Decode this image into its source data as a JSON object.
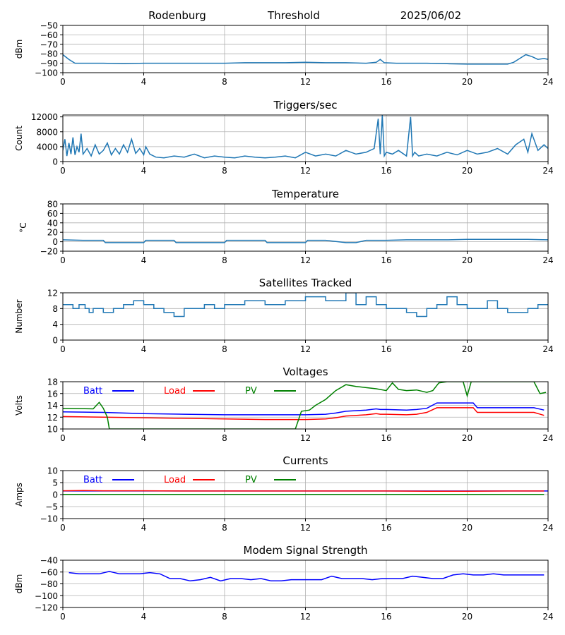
{
  "header": {
    "station": "Rodenburg",
    "mode": "Threshold",
    "date": "2025/06/02"
  },
  "chart_data": [
    {
      "type": "line",
      "title": "",
      "ylabel": "dBm",
      "ylim": [
        -100,
        -50
      ],
      "yticks": [
        -100,
        -90,
        -80,
        -70,
        -60,
        -50
      ],
      "xlim": [
        0,
        24
      ],
      "xticks": [
        0,
        4,
        8,
        12,
        16,
        20,
        24
      ],
      "grid": true,
      "series": [
        {
          "color": "#1f77b4",
          "x": [
            0,
            0.3,
            0.6,
            1,
            2,
            3,
            4,
            5,
            6,
            7,
            8,
            9,
            10,
            11,
            12,
            13,
            14,
            15,
            15.5,
            15.7,
            15.9,
            16.5,
            17,
            18,
            19,
            20,
            21,
            22,
            22.3,
            22.6,
            22.9,
            23.2,
            23.5,
            23.8,
            24
          ],
          "y": [
            -81,
            -86,
            -90,
            -90,
            -90,
            -90.5,
            -90,
            -90,
            -90,
            -90,
            -90,
            -89.5,
            -89.5,
            -89.5,
            -89,
            -89.5,
            -89.5,
            -90,
            -89,
            -86,
            -89.5,
            -90,
            -90,
            -90,
            -90.5,
            -91,
            -91,
            -91,
            -89,
            -85,
            -81,
            -83,
            -86,
            -85,
            -86
          ]
        }
      ]
    },
    {
      "type": "line",
      "title": "Triggers/sec",
      "ylabel": "Count",
      "ylim": [
        0,
        12500
      ],
      "yticks": [
        0,
        4000,
        8000,
        12000
      ],
      "xlim": [
        0,
        24
      ],
      "xticks": [
        0,
        4,
        8,
        12,
        16,
        20,
        24
      ],
      "grid": true,
      "series": [
        {
          "color": "#1f77b4",
          "x": [
            0,
            0.1,
            0.2,
            0.3,
            0.4,
            0.5,
            0.6,
            0.7,
            0.8,
            0.9,
            1.0,
            1.2,
            1.4,
            1.6,
            1.8,
            2.0,
            2.2,
            2.4,
            2.6,
            2.8,
            3.0,
            3.2,
            3.4,
            3.6,
            3.8,
            4.0,
            4.1,
            4.3,
            4.6,
            5.0,
            5.5,
            6.0,
            6.5,
            7.0,
            7.5,
            8.0,
            8.5,
            9.0,
            9.5,
            10.0,
            10.5,
            11.0,
            11.5,
            12.0,
            12.5,
            13.0,
            13.5,
            14.0,
            14.5,
            15.0,
            15.4,
            15.6,
            15.7,
            15.8,
            15.9,
            16.0,
            16.3,
            16.6,
            17.0,
            17.2,
            17.3,
            17.4,
            17.6,
            18.0,
            18.5,
            19.0,
            19.5,
            20.0,
            20.5,
            21.0,
            21.5,
            22.0,
            22.4,
            22.8,
            23.0,
            23.2,
            23.5,
            23.8,
            24.0
          ],
          "y": [
            3000,
            6000,
            1500,
            5000,
            2000,
            6500,
            1800,
            4000,
            2500,
            7500,
            2000,
            3500,
            1500,
            4500,
            2000,
            3000,
            5000,
            1800,
            3500,
            2000,
            4500,
            2500,
            6000,
            2200,
            3500,
            1800,
            4000,
            2000,
            1200,
            1000,
            1500,
            1200,
            2000,
            1000,
            1500,
            1200,
            1000,
            1500,
            1200,
            1000,
            1200,
            1500,
            1000,
            2500,
            1500,
            2000,
            1500,
            3000,
            2000,
            2500,
            3500,
            11500,
            2000,
            12500,
            1500,
            2500,
            2000,
            3000,
            1500,
            12000,
            1500,
            2500,
            1500,
            2000,
            1500,
            2500,
            1800,
            3000,
            2000,
            2500,
            3500,
            2000,
            4500,
            6000,
            2500,
            7500,
            3000,
            4500,
            3500
          ]
        }
      ]
    },
    {
      "type": "line",
      "title": "Temperature",
      "ylabel": "°C",
      "ylim": [
        -20,
        80
      ],
      "yticks": [
        -20,
        0,
        20,
        40,
        60,
        80
      ],
      "xlim": [
        0,
        24
      ],
      "xticks": [
        0,
        4,
        8,
        12,
        16,
        20,
        24
      ],
      "grid": true,
      "series": [
        {
          "color": "#1f77b4",
          "x": [
            0,
            1,
            2,
            2.1,
            3,
            4,
            4.1,
            5,
            5.5,
            5.6,
            6,
            7,
            8,
            8.1,
            9,
            10,
            10.1,
            11,
            12,
            12.1,
            13,
            14,
            14.5,
            15,
            15.5,
            16,
            17,
            18,
            19,
            20,
            21,
            22,
            23,
            24
          ],
          "y": [
            4,
            3,
            3,
            -2,
            -2,
            -2,
            3,
            3,
            3,
            -2,
            -2,
            -2,
            -2,
            3,
            3,
            3,
            -2,
            -2,
            -2,
            3,
            3,
            -2,
            -2,
            3,
            3,
            3,
            4,
            4,
            4,
            5,
            5,
            5,
            5,
            4
          ]
        }
      ]
    },
    {
      "type": "line",
      "title": "Satellites Tracked",
      "ylabel": "Number",
      "ylim": [
        0,
        12
      ],
      "yticks": [
        0,
        4,
        8,
        12
      ],
      "xlim": [
        0,
        24
      ],
      "xticks": [
        0,
        4,
        8,
        12,
        16,
        20,
        24
      ],
      "grid": true,
      "series": [
        {
          "color": "#1f77b4",
          "x": [
            0,
            0.5,
            0.5,
            0.8,
            0.8,
            1.1,
            1.1,
            1.3,
            1.3,
            1.5,
            1.5,
            2.0,
            2.0,
            2.5,
            2.5,
            3.0,
            3.0,
            3.5,
            3.5,
            4.0,
            4.0,
            4.5,
            4.5,
            5.0,
            5.0,
            5.5,
            5.5,
            6.0,
            6.0,
            7.0,
            7.0,
            7.5,
            7.5,
            8.0,
            8.0,
            9.0,
            9.0,
            10.0,
            10.0,
            11.0,
            11.0,
            12.0,
            12.0,
            13.0,
            13.0,
            14.0,
            14.0,
            14.5,
            14.5,
            15.0,
            15.0,
            15.5,
            15.5,
            16.0,
            16.0,
            17.0,
            17.0,
            17.5,
            17.5,
            18.0,
            18.0,
            18.5,
            18.5,
            19.0,
            19.0,
            19.5,
            19.5,
            20.0,
            20.0,
            21.0,
            21.0,
            21.5,
            21.5,
            22.0,
            22.0,
            23.0,
            23.0,
            23.5,
            23.5,
            24.0
          ],
          "y": [
            9,
            9,
            8,
            8,
            9,
            9,
            8,
            8,
            7,
            7,
            8,
            8,
            7,
            7,
            8,
            8,
            9,
            9,
            10,
            10,
            9,
            9,
            8,
            8,
            7,
            7,
            6,
            6,
            8,
            8,
            9,
            9,
            8,
            8,
            9,
            9,
            10,
            10,
            9,
            9,
            10,
            10,
            11,
            11,
            10,
            10,
            12,
            12,
            9,
            9,
            11,
            11,
            9,
            9,
            8,
            8,
            7,
            7,
            6,
            6,
            8,
            8,
            9,
            9,
            11,
            11,
            9,
            9,
            8,
            8,
            10,
            10,
            8,
            8,
            7,
            7,
            8,
            8,
            9,
            9
          ]
        }
      ]
    },
    {
      "type": "line",
      "title": "Voltages",
      "ylabel": "Volts",
      "ylim": [
        10,
        18
      ],
      "yticks": [
        10,
        12,
        14,
        16,
        18
      ],
      "xlim": [
        0,
        24
      ],
      "xticks": [
        0,
        4,
        8,
        12,
        16,
        20,
        24
      ],
      "grid": true,
      "legend": "upper-left-inline",
      "series": [
        {
          "name": "Batt",
          "color": "#0000ff",
          "x": [
            0,
            2,
            4,
            6,
            8,
            10,
            12,
            13,
            13.5,
            14,
            15,
            15.5,
            15.7,
            16,
            17,
            17.5,
            18,
            18.5,
            19,
            20,
            20.3,
            20.5,
            21,
            22,
            23,
            23.3,
            23.8
          ],
          "y": [
            12.9,
            12.8,
            12.6,
            12.5,
            12.4,
            12.4,
            12.4,
            12.5,
            12.7,
            13.0,
            13.2,
            13.4,
            13.3,
            13.3,
            13.2,
            13.3,
            13.5,
            14.4,
            14.4,
            14.4,
            14.4,
            13.6,
            13.6,
            13.6,
            13.6,
            13.6,
            13.2
          ]
        },
        {
          "name": "Load",
          "color": "#ff0000",
          "x": [
            0,
            2,
            4,
            6,
            8,
            10,
            12,
            13,
            13.5,
            14,
            15,
            15.5,
            15.7,
            16,
            17,
            17.5,
            18,
            18.5,
            19,
            20,
            20.3,
            20.5,
            21,
            22,
            23,
            23.3,
            23.8
          ],
          "y": [
            12.1,
            12.0,
            11.9,
            11.8,
            11.7,
            11.6,
            11.6,
            11.7,
            11.9,
            12.2,
            12.4,
            12.6,
            12.5,
            12.5,
            12.4,
            12.5,
            12.8,
            13.6,
            13.6,
            13.6,
            13.6,
            12.8,
            12.8,
            12.8,
            12.8,
            12.8,
            12.3
          ]
        },
        {
          "name": "PV",
          "color": "#008000",
          "x": [
            0,
            1.5,
            1.8,
            2.0,
            2.2,
            2.3,
            11.5,
            11.8,
            12.2,
            12.5,
            13.0,
            13.5,
            14.0,
            14.5,
            15.0,
            15.5,
            16.0,
            16.3,
            16.6,
            17.0,
            17.5,
            18.0,
            18.3,
            18.6,
            19.0,
            19.4,
            19.8,
            20.0,
            20.2,
            23.3,
            23.6,
            23.9
          ],
          "y": [
            13.5,
            13.4,
            14.5,
            13.5,
            12.0,
            10.0,
            10.0,
            13.0,
            13.2,
            14.0,
            15.0,
            16.5,
            17.5,
            17.2,
            17.0,
            16.8,
            16.5,
            17.8,
            16.7,
            16.5,
            16.6,
            16.2,
            16.5,
            17.8,
            18.0,
            18.0,
            18.0,
            15.6,
            18.0,
            18.0,
            16.0,
            16.2
          ]
        }
      ]
    },
    {
      "type": "line",
      "title": "Currents",
      "ylabel": "Amps",
      "ylim": [
        -10,
        10
      ],
      "yticks": [
        -10,
        -5,
        0,
        5,
        10
      ],
      "xlim": [
        0,
        24
      ],
      "xticks": [
        0,
        4,
        8,
        12,
        16,
        20,
        24
      ],
      "grid": true,
      "legend": "upper-left-inline",
      "series": [
        {
          "name": "Batt",
          "color": "#0000ff",
          "x": [
            0,
            24
          ],
          "y": [
            1.5,
            1.5
          ]
        },
        {
          "name": "Load",
          "color": "#ff0000",
          "x": [
            0,
            1,
            2,
            4,
            6,
            8,
            10,
            12,
            14,
            16,
            18,
            20,
            22,
            23.8
          ],
          "y": [
            1.6,
            1.7,
            1.6,
            1.6,
            1.5,
            1.5,
            1.5,
            1.5,
            1.5,
            1.5,
            1.4,
            1.4,
            1.5,
            1.5
          ]
        },
        {
          "name": "PV",
          "color": "#008000",
          "x": [
            0,
            23.8
          ],
          "y": [
            0.1,
            0.1
          ]
        }
      ]
    },
    {
      "type": "line",
      "title": "Modem Signal Strength",
      "ylabel": "dBm",
      "ylim": [
        -120,
        -40
      ],
      "yticks": [
        -120,
        -100,
        -80,
        -60,
        -40
      ],
      "xlim": [
        0,
        24
      ],
      "xticks": [
        0,
        4,
        8,
        12,
        16,
        20,
        24
      ],
      "grid": true,
      "series": [
        {
          "color": "#0000ff",
          "x": [
            0.3,
            0.8,
            1.8,
            2.3,
            2.8,
            3.8,
            4.3,
            4.8,
            5.3,
            5.8,
            6.3,
            6.8,
            7.3,
            7.8,
            8.3,
            8.8,
            9.3,
            9.8,
            10.3,
            10.8,
            11.3,
            11.8,
            12.3,
            12.8,
            13.3,
            13.8,
            14.3,
            14.8,
            15.3,
            15.8,
            16.3,
            16.8,
            17.3,
            17.8,
            18.3,
            18.8,
            19.3,
            19.8,
            20.3,
            20.8,
            21.3,
            21.8,
            22.3,
            22.8,
            23.3,
            23.8
          ],
          "y": [
            -61,
            -63,
            -63,
            -59,
            -63,
            -63,
            -61,
            -63,
            -71,
            -71,
            -75,
            -73,
            -69,
            -75,
            -71,
            -71,
            -73,
            -71,
            -75,
            -75,
            -73,
            -73,
            -73,
            -73,
            -67,
            -71,
            -71,
            -71,
            -73,
            -71,
            -71,
            -71,
            -67,
            -69,
            -71,
            -71,
            -65,
            -63,
            -65,
            -65,
            -63,
            -65,
            -65,
            -65,
            -65,
            -65
          ]
        }
      ]
    }
  ]
}
